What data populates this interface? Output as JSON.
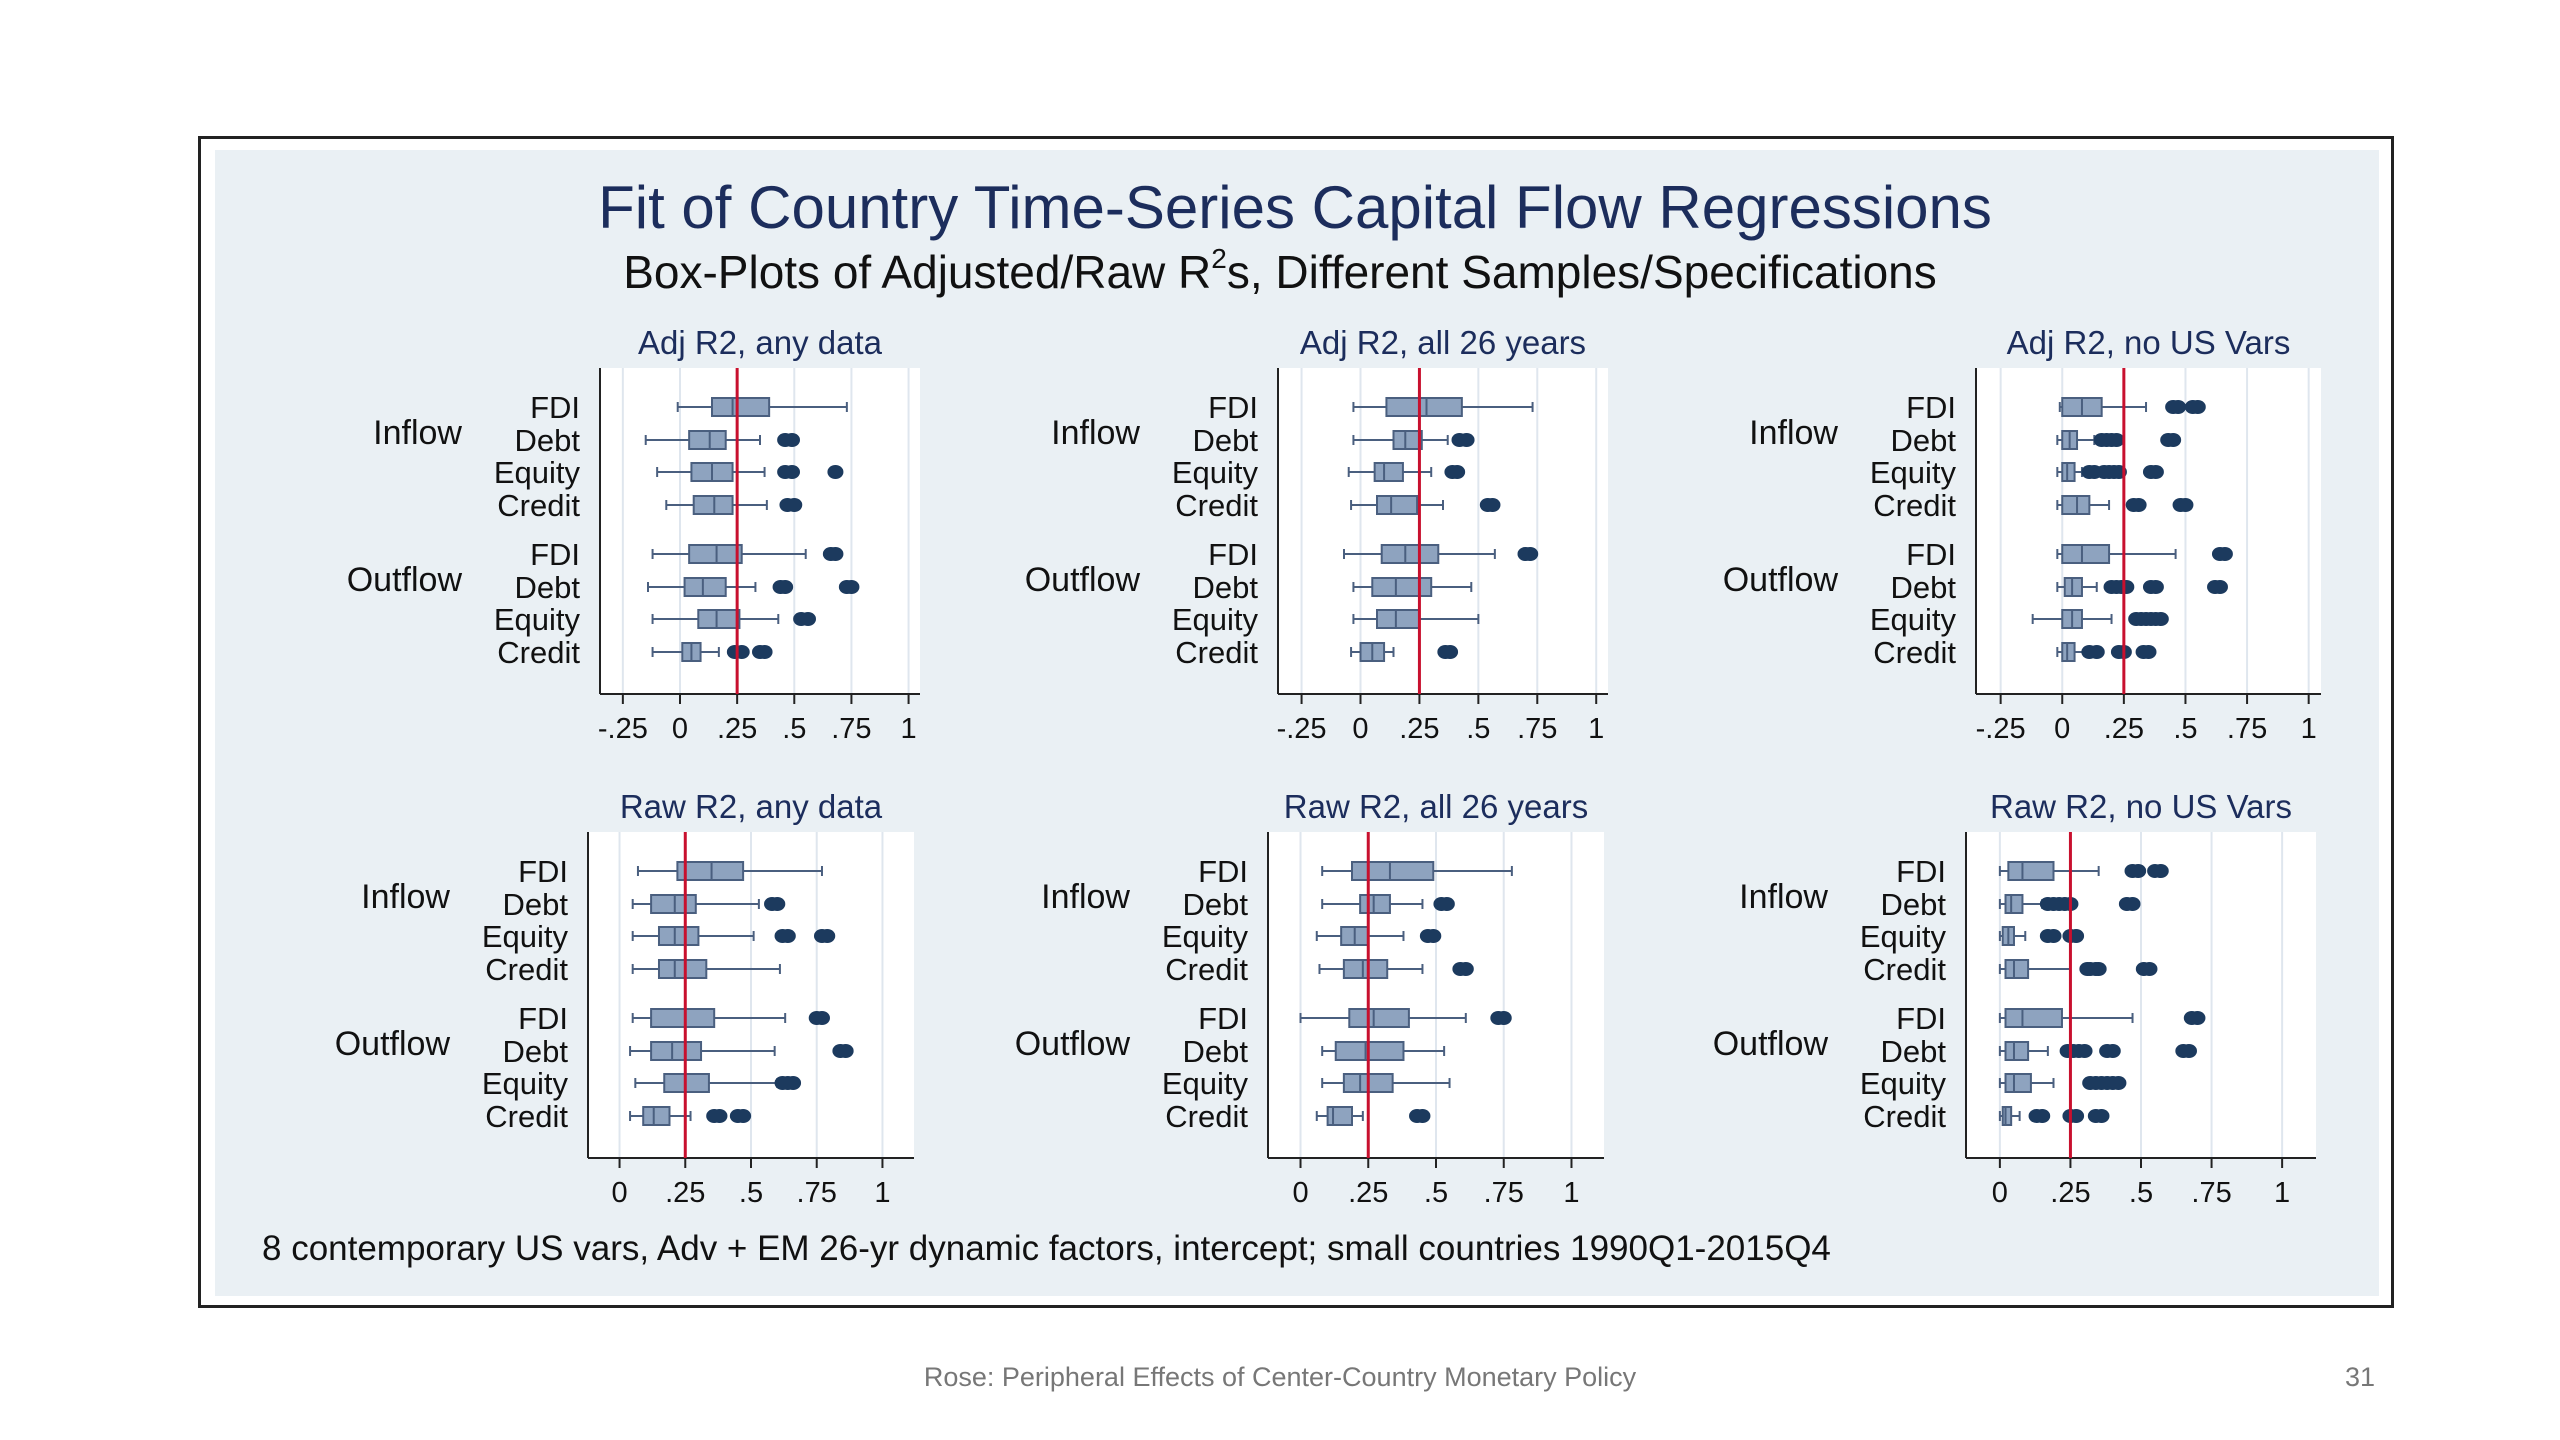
{
  "colors": {
    "panel_bg": "#eaf0f4",
    "box_fill": "#8ea3bf",
    "box_stroke": "#4a5f7f",
    "outlier": "#1c3a5e",
    "ref_line": "#c8102e",
    "title": "#1c2d5c"
  },
  "footer": {
    "text": "Rose: Peripheral Effects of Center-Country Monetary Policy",
    "page": "31"
  },
  "chart_data": {
    "type": "boxplot",
    "title": "Fit of Country Time-Series Capital Flow Regressions",
    "subtitle_pre": "Box-Plots of Adjusted/Raw R",
    "subtitle_sup": "2",
    "subtitle_post": "s, Different Samples/Specifications",
    "note": "8 contemporary US vars, Adv + EM 26-yr dynamic factors, intercept; small countries 1990Q1-2015Q4",
    "groups": [
      "Inflow",
      "Outflow"
    ],
    "categories": [
      "FDI",
      "Debt",
      "Equity",
      "Credit"
    ],
    "reference_line": 0.25,
    "panels": [
      {
        "title": "Adj R2, any data",
        "xlim": [
          -0.35,
          1.05
        ],
        "ticks": [
          {
            "v": -0.25,
            "l": "-.25"
          },
          {
            "v": 0,
            "l": "0"
          },
          {
            "v": 0.25,
            "l": ".25"
          },
          {
            "v": 0.5,
            "l": ".5"
          },
          {
            "v": 0.75,
            "l": ".75"
          },
          {
            "v": 1,
            "l": "1"
          }
        ],
        "rows": [
          {
            "group": "Inflow",
            "label": "FDI",
            "wl": -0.01,
            "q1": 0.14,
            "med": 0.23,
            "q3": 0.39,
            "wh": 0.73,
            "out": []
          },
          {
            "group": "Inflow",
            "label": "Debt",
            "wl": -0.15,
            "q1": 0.04,
            "med": 0.13,
            "q3": 0.2,
            "wh": 0.35,
            "out": [
              0.46,
              0.49
            ]
          },
          {
            "group": "Inflow",
            "label": "Equity",
            "wl": -0.1,
            "q1": 0.05,
            "med": 0.14,
            "q3": 0.23,
            "wh": 0.37,
            "out": [
              0.46,
              0.49,
              0.68
            ]
          },
          {
            "group": "Inflow",
            "label": "Credit",
            "wl": -0.06,
            "q1": 0.06,
            "med": 0.15,
            "q3": 0.23,
            "wh": 0.38,
            "out": [
              0.47,
              0.5
            ]
          },
          {
            "group": "Outflow",
            "label": "FDI",
            "wl": -0.12,
            "q1": 0.04,
            "med": 0.16,
            "q3": 0.27,
            "wh": 0.55,
            "out": [
              0.66,
              0.68
            ]
          },
          {
            "group": "Outflow",
            "label": "Debt",
            "wl": -0.14,
            "q1": 0.02,
            "med": 0.1,
            "q3": 0.2,
            "wh": 0.33,
            "out": [
              0.44,
              0.46,
              0.73,
              0.75
            ]
          },
          {
            "group": "Outflow",
            "label": "Equity",
            "wl": -0.12,
            "q1": 0.08,
            "med": 0.16,
            "q3": 0.26,
            "wh": 0.43,
            "out": [
              0.53,
              0.56
            ]
          },
          {
            "group": "Outflow",
            "label": "Credit",
            "wl": -0.12,
            "q1": 0.01,
            "med": 0.05,
            "q3": 0.09,
            "wh": 0.17,
            "out": [
              0.24,
              0.27,
              0.35,
              0.37
            ]
          }
        ]
      },
      {
        "title": "Adj R2, all 26 years",
        "xlim": [
          -0.35,
          1.05
        ],
        "ticks": [
          {
            "v": -0.25,
            "l": "-.25"
          },
          {
            "v": 0,
            "l": "0"
          },
          {
            "v": 0.25,
            "l": ".25"
          },
          {
            "v": 0.5,
            "l": ".5"
          },
          {
            "v": 0.75,
            "l": ".75"
          },
          {
            "v": 1,
            "l": "1"
          }
        ],
        "rows": [
          {
            "group": "Inflow",
            "label": "FDI",
            "wl": -0.03,
            "q1": 0.11,
            "med": 0.28,
            "q3": 0.43,
            "wh": 0.73,
            "out": []
          },
          {
            "group": "Inflow",
            "label": "Debt",
            "wl": -0.03,
            "q1": 0.14,
            "med": 0.19,
            "q3": 0.26,
            "wh": 0.37,
            "out": [
              0.42,
              0.45
            ]
          },
          {
            "group": "Inflow",
            "label": "Equity",
            "wl": -0.05,
            "q1": 0.06,
            "med": 0.1,
            "q3": 0.18,
            "wh": 0.3,
            "out": [
              0.39,
              0.41
            ]
          },
          {
            "group": "Inflow",
            "label": "Credit",
            "wl": -0.04,
            "q1": 0.07,
            "med": 0.13,
            "q3": 0.24,
            "wh": 0.35,
            "out": [
              0.54,
              0.56
            ]
          },
          {
            "group": "Outflow",
            "label": "FDI",
            "wl": -0.07,
            "q1": 0.09,
            "med": 0.19,
            "q3": 0.33,
            "wh": 0.57,
            "out": [
              0.7,
              0.72
            ]
          },
          {
            "group": "Outflow",
            "label": "Debt",
            "wl": -0.03,
            "q1": 0.05,
            "med": 0.15,
            "q3": 0.3,
            "wh": 0.47,
            "out": []
          },
          {
            "group": "Outflow",
            "label": "Equity",
            "wl": -0.03,
            "q1": 0.07,
            "med": 0.15,
            "q3": 0.25,
            "wh": 0.5,
            "out": []
          },
          {
            "group": "Outflow",
            "label": "Credit",
            "wl": -0.04,
            "q1": 0.0,
            "med": 0.05,
            "q3": 0.1,
            "wh": 0.14,
            "out": [
              0.36,
              0.38
            ]
          }
        ]
      },
      {
        "title": "Adj R2, no US Vars",
        "xlim": [
          -0.35,
          1.05
        ],
        "ticks": [
          {
            "v": -0.25,
            "l": "-.25"
          },
          {
            "v": 0,
            "l": "0"
          },
          {
            "v": 0.25,
            "l": ".25"
          },
          {
            "v": 0.5,
            "l": ".5"
          },
          {
            "v": 0.75,
            "l": ".75"
          },
          {
            "v": 1,
            "l": "1"
          }
        ],
        "rows": [
          {
            "group": "Inflow",
            "label": "FDI",
            "wl": -0.01,
            "q1": 0.0,
            "med": 0.08,
            "q3": 0.16,
            "wh": 0.34,
            "out": [
              0.45,
              0.47,
              0.53,
              0.55
            ]
          },
          {
            "group": "Inflow",
            "label": "Debt",
            "wl": -0.02,
            "q1": 0.0,
            "med": 0.03,
            "q3": 0.06,
            "wh": 0.13,
            "out": [
              0.16,
              0.18,
              0.2,
              0.22,
              0.43,
              0.45
            ]
          },
          {
            "group": "Inflow",
            "label": "Equity",
            "wl": -0.02,
            "q1": 0.0,
            "med": 0.02,
            "q3": 0.05,
            "wh": 0.08,
            "out": [
              0.11,
              0.13,
              0.17,
              0.19,
              0.21,
              0.23,
              0.36,
              0.38
            ]
          },
          {
            "group": "Inflow",
            "label": "Credit",
            "wl": -0.02,
            "q1": 0.0,
            "med": 0.06,
            "q3": 0.11,
            "wh": 0.19,
            "out": [
              0.29,
              0.31,
              0.48,
              0.5
            ]
          },
          {
            "group": "Outflow",
            "label": "FDI",
            "wl": -0.02,
            "q1": 0.0,
            "med": 0.08,
            "q3": 0.19,
            "wh": 0.46,
            "out": [
              0.64,
              0.66
            ]
          },
          {
            "group": "Outflow",
            "label": "Debt",
            "wl": -0.02,
            "q1": 0.01,
            "med": 0.04,
            "q3": 0.08,
            "wh": 0.14,
            "out": [
              0.2,
              0.22,
              0.24,
              0.26,
              0.36,
              0.38,
              0.62,
              0.64
            ]
          },
          {
            "group": "Outflow",
            "label": "Equity",
            "wl": -0.12,
            "q1": 0.0,
            "med": 0.04,
            "q3": 0.08,
            "wh": 0.2,
            "out": [
              0.3,
              0.32,
              0.34,
              0.36,
              0.38,
              0.4
            ]
          },
          {
            "group": "Outflow",
            "label": "Credit",
            "wl": -0.02,
            "q1": 0.0,
            "med": 0.02,
            "q3": 0.05,
            "wh": 0.09,
            "out": [
              0.11,
              0.14,
              0.23,
              0.25,
              0.33,
              0.35
            ]
          }
        ]
      },
      {
        "title": "Raw R2, any data",
        "xlim": [
          -0.12,
          1.12
        ],
        "ticks": [
          {
            "v": 0,
            "l": "0"
          },
          {
            "v": 0.25,
            "l": ".25"
          },
          {
            "v": 0.5,
            "l": ".5"
          },
          {
            "v": 0.75,
            "l": ".75"
          },
          {
            "v": 1,
            "l": "1"
          }
        ],
        "rows": [
          {
            "group": "Inflow",
            "label": "FDI",
            "wl": 0.07,
            "q1": 0.22,
            "med": 0.35,
            "q3": 0.47,
            "wh": 0.77,
            "out": []
          },
          {
            "group": "Inflow",
            "label": "Debt",
            "wl": 0.05,
            "q1": 0.12,
            "med": 0.21,
            "q3": 0.29,
            "wh": 0.53,
            "out": [
              0.58,
              0.6
            ]
          },
          {
            "group": "Inflow",
            "label": "Equity",
            "wl": 0.05,
            "q1": 0.15,
            "med": 0.21,
            "q3": 0.3,
            "wh": 0.51,
            "out": [
              0.62,
              0.64,
              0.77,
              0.79
            ]
          },
          {
            "group": "Inflow",
            "label": "Credit",
            "wl": 0.05,
            "q1": 0.15,
            "med": 0.21,
            "q3": 0.33,
            "wh": 0.61,
            "out": []
          },
          {
            "group": "Outflow",
            "label": "FDI",
            "wl": 0.05,
            "q1": 0.12,
            "med": 0.25,
            "q3": 0.36,
            "wh": 0.63,
            "out": [
              0.75,
              0.77
            ]
          },
          {
            "group": "Outflow",
            "label": "Debt",
            "wl": 0.04,
            "q1": 0.12,
            "med": 0.2,
            "q3": 0.31,
            "wh": 0.59,
            "out": [
              0.84,
              0.86
            ]
          },
          {
            "group": "Outflow",
            "label": "Equity",
            "wl": 0.06,
            "q1": 0.17,
            "med": 0.25,
            "q3": 0.34,
            "wh": 0.6,
            "out": [
              0.62,
              0.64,
              0.66
            ]
          },
          {
            "group": "Outflow",
            "label": "Credit",
            "wl": 0.04,
            "q1": 0.09,
            "med": 0.13,
            "q3": 0.19,
            "wh": 0.27,
            "out": [
              0.36,
              0.38,
              0.45,
              0.47
            ]
          }
        ]
      },
      {
        "title": "Raw R2, all 26 years",
        "xlim": [
          -0.12,
          1.12
        ],
        "ticks": [
          {
            "v": 0,
            "l": "0"
          },
          {
            "v": 0.25,
            "l": ".25"
          },
          {
            "v": 0.5,
            "l": ".5"
          },
          {
            "v": 0.75,
            "l": ".75"
          },
          {
            "v": 1,
            "l": "1"
          }
        ],
        "rows": [
          {
            "group": "Inflow",
            "label": "FDI",
            "wl": 0.08,
            "q1": 0.19,
            "med": 0.33,
            "q3": 0.49,
            "wh": 0.78,
            "out": []
          },
          {
            "group": "Inflow",
            "label": "Debt",
            "wl": 0.08,
            "q1": 0.22,
            "med": 0.27,
            "q3": 0.33,
            "wh": 0.45,
            "out": [
              0.52,
              0.54
            ]
          },
          {
            "group": "Inflow",
            "label": "Equity",
            "wl": 0.06,
            "q1": 0.15,
            "med": 0.2,
            "q3": 0.25,
            "wh": 0.38,
            "out": [
              0.47,
              0.49
            ]
          },
          {
            "group": "Inflow",
            "label": "Credit",
            "wl": 0.07,
            "q1": 0.16,
            "med": 0.23,
            "q3": 0.32,
            "wh": 0.45,
            "out": [
              0.59,
              0.61
            ]
          },
          {
            "group": "Outflow",
            "label": "FDI",
            "wl": 0.0,
            "q1": 0.18,
            "med": 0.27,
            "q3": 0.4,
            "wh": 0.61,
            "out": [
              0.73,
              0.75
            ]
          },
          {
            "group": "Outflow",
            "label": "Debt",
            "wl": 0.08,
            "q1": 0.13,
            "med": 0.24,
            "q3": 0.38,
            "wh": 0.53,
            "out": []
          },
          {
            "group": "Outflow",
            "label": "Equity",
            "wl": 0.08,
            "q1": 0.16,
            "med": 0.22,
            "q3": 0.34,
            "wh": 0.55,
            "out": []
          },
          {
            "group": "Outflow",
            "label": "Credit",
            "wl": 0.06,
            "q1": 0.1,
            "med": 0.12,
            "q3": 0.19,
            "wh": 0.23,
            "out": [
              0.43,
              0.45
            ]
          }
        ]
      },
      {
        "title": "Raw R2, no US Vars",
        "xlim": [
          -0.12,
          1.12
        ],
        "ticks": [
          {
            "v": 0,
            "l": "0"
          },
          {
            "v": 0.25,
            "l": ".25"
          },
          {
            "v": 0.5,
            "l": ".5"
          },
          {
            "v": 0.75,
            "l": ".75"
          },
          {
            "v": 1,
            "l": "1"
          }
        ],
        "rows": [
          {
            "group": "Inflow",
            "label": "FDI",
            "wl": 0.0,
            "q1": 0.03,
            "med": 0.08,
            "q3": 0.19,
            "wh": 0.35,
            "out": [
              0.47,
              0.49,
              0.55,
              0.57
            ]
          },
          {
            "group": "Inflow",
            "label": "Debt",
            "wl": 0.0,
            "q1": 0.02,
            "med": 0.04,
            "q3": 0.08,
            "wh": 0.15,
            "out": [
              0.17,
              0.19,
              0.21,
              0.23,
              0.25,
              0.45,
              0.47
            ]
          },
          {
            "group": "Inflow",
            "label": "Equity",
            "wl": 0.0,
            "q1": 0.01,
            "med": 0.03,
            "q3": 0.05,
            "wh": 0.09,
            "out": [
              0.17,
              0.19,
              0.25,
              0.27
            ]
          },
          {
            "group": "Inflow",
            "label": "Credit",
            "wl": 0.0,
            "q1": 0.02,
            "med": 0.05,
            "q3": 0.1,
            "wh": 0.25,
            "out": [
              0.31,
              0.32,
              0.34,
              0.35,
              0.51,
              0.53
            ]
          },
          {
            "group": "Outflow",
            "label": "FDI",
            "wl": 0.0,
            "q1": 0.02,
            "med": 0.08,
            "q3": 0.22,
            "wh": 0.47,
            "out": [
              0.68,
              0.7
            ]
          },
          {
            "group": "Outflow",
            "label": "Debt",
            "wl": 0.0,
            "q1": 0.02,
            "med": 0.05,
            "q3": 0.1,
            "wh": 0.17,
            "out": [
              0.24,
              0.26,
              0.28,
              0.3,
              0.38,
              0.4,
              0.65,
              0.67
            ]
          },
          {
            "group": "Outflow",
            "label": "Equity",
            "wl": 0.0,
            "q1": 0.02,
            "med": 0.05,
            "q3": 0.11,
            "wh": 0.19,
            "out": [
              0.32,
              0.34,
              0.36,
              0.38,
              0.4,
              0.42
            ]
          },
          {
            "group": "Outflow",
            "label": "Credit",
            "wl": 0.0,
            "q1": 0.01,
            "med": 0.02,
            "q3": 0.04,
            "wh": 0.07,
            "out": [
              0.13,
              0.15,
              0.25,
              0.27,
              0.34,
              0.36
            ]
          }
        ]
      }
    ]
  }
}
